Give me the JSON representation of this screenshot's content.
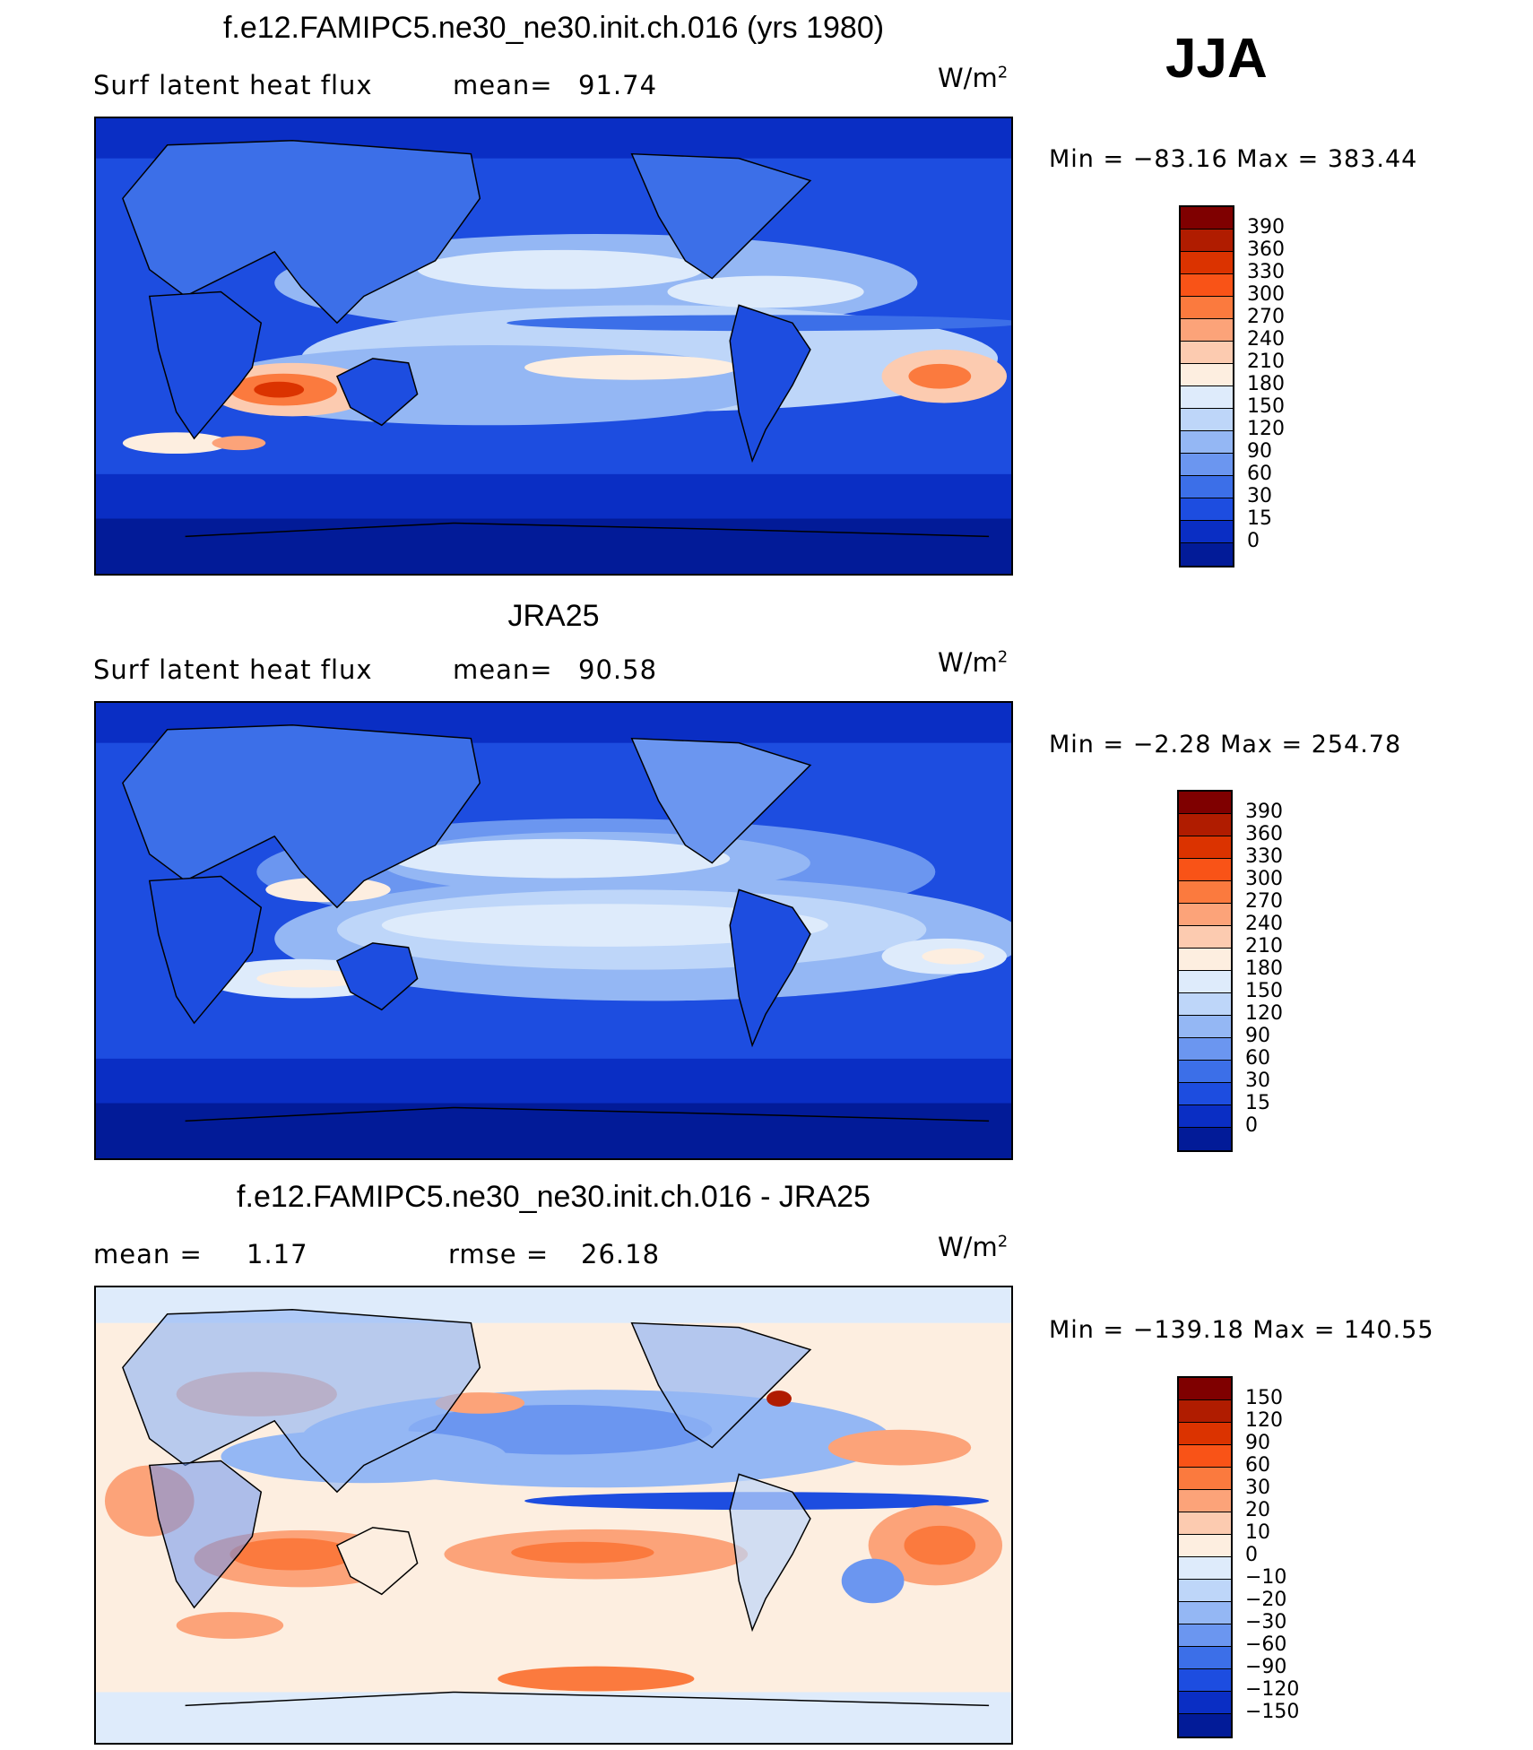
{
  "season": "JJA",
  "panels": [
    {
      "title": "f.e12.FAMIPC5.ne30_ne30.init.ch.016 (yrs 1980)",
      "left_label": "Surf  latent  heat  flux",
      "stat_label": "mean=",
      "stat_value": "91.74",
      "units": "W/m",
      "units_exp": "2",
      "min_label": "Min  =",
      "min_value": "−83.16",
      "max_label": "Max  =",
      "max_value": "383.44",
      "colorbar": {
        "colors": [
          "#7f0000",
          "#b01c00",
          "#db3300",
          "#f95317",
          "#fb7a3e",
          "#fca379",
          "#fccbb0",
          "#fdeee0",
          "#deebfb",
          "#bed6f9",
          "#94b7f4",
          "#6b96f0",
          "#3c6fe8",
          "#1d4de0",
          "#0a2ec4",
          "#021b98"
        ],
        "labels": [
          "390",
          "360",
          "330",
          "300",
          "270",
          "240",
          "210",
          "180",
          "150",
          "120",
          "90",
          "60",
          "30",
          "15",
          "0"
        ]
      }
    },
    {
      "title": "JRA25",
      "left_label": "Surf  latent  heat  flux",
      "stat_label": "mean=",
      "stat_value": "90.58",
      "units": "W/m",
      "units_exp": "2",
      "min_label": "Min  =",
      "min_value": "−2.28",
      "max_label": "Max  =",
      "max_value": "254.78",
      "colorbar": {
        "colors": [
          "#7f0000",
          "#b01c00",
          "#db3300",
          "#f95317",
          "#fb7a3e",
          "#fca379",
          "#fccbb0",
          "#fdeee0",
          "#deebfb",
          "#bed6f9",
          "#94b7f4",
          "#6b96f0",
          "#3c6fe8",
          "#1d4de0",
          "#0a2ec4",
          "#021b98"
        ],
        "labels": [
          "390",
          "360",
          "330",
          "300",
          "270",
          "240",
          "210",
          "180",
          "150",
          "120",
          "90",
          "60",
          "30",
          "15",
          "0"
        ]
      }
    },
    {
      "title": "f.e12.FAMIPC5.ne30_ne30.init.ch.016 - JRA25",
      "left_label": "mean  =",
      "left_value": "1.17",
      "stat_label": "rmse  =",
      "stat_value": "26.18",
      "units": "W/m",
      "units_exp": "2",
      "min_label": "Min  =",
      "min_value": "−139.18",
      "max_label": "Max  =",
      "max_value": "140.55",
      "colorbar": {
        "colors": [
          "#7f0000",
          "#b01c00",
          "#db3300",
          "#f95317",
          "#fb7a3e",
          "#fca379",
          "#fccbb0",
          "#fdeee0",
          "#deebfb",
          "#bed6f9",
          "#94b7f4",
          "#6b96f0",
          "#3c6fe8",
          "#1d4de0",
          "#0a2ec4",
          "#021b98"
        ],
        "labels": [
          "150",
          "120",
          "90",
          "60",
          "30",
          "20",
          "10",
          "0",
          "−10",
          "−20",
          "−30",
          "−60",
          "−90",
          "−120",
          "−150"
        ]
      }
    }
  ]
}
